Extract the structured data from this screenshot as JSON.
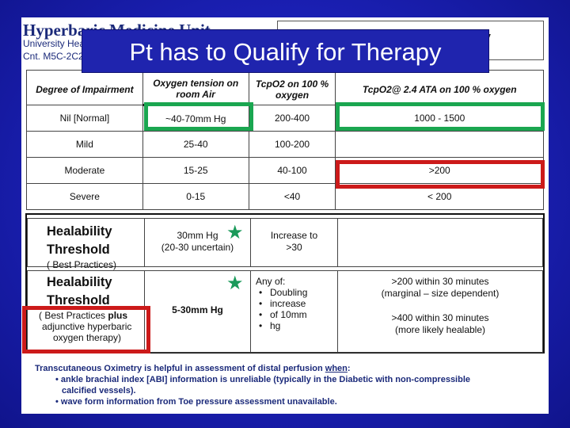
{
  "header": {
    "unit_title": "Hyperbaric Medicine Unit",
    "unit_university": "University Hea",
    "unit_location": "Cnt. M5C-2C2",
    "box_letter": "V"
  },
  "banner": {
    "title": "Pt has to Qualify for Therapy"
  },
  "table": {
    "columns": [
      "Degree of Impairment",
      "Oxygen tension on room Air",
      "TcpO2 on 100 % oxygen",
      "TcpO2@ 2.4 ATA on 100 % oxygen"
    ],
    "rows": [
      [
        "Nil [Normal]",
        "~40-70mm Hg",
        "200-400",
        "1000 - 1500"
      ],
      [
        "Mild",
        "25-40",
        "100-200",
        ""
      ],
      [
        "Moderate",
        "15-25",
        "40-100",
        ">200"
      ],
      [
        "Severe",
        "0-15",
        "<40",
        "< 200"
      ]
    ]
  },
  "threshold1": {
    "title_line1": "Healability",
    "title_line2": "Threshold",
    "subtitle": "( Best Practices)",
    "tension_line1": "30mm Hg",
    "tension_line2": "(20-30 uncertain)",
    "tcpo2_line1": "Increase to",
    "tcpo2_line2": ">30"
  },
  "threshold2": {
    "title_line1": "Healability",
    "title_line2": "Threshold",
    "sub_line1_a": "( Best Practices ",
    "sub_line1_b": "plus",
    "sub_line2": "adjunctive hyperbaric",
    "sub_line3": "oxygen therapy)",
    "tension": "5-30mm Hg",
    "any_of": "Any of:",
    "bullet1": "Doubling",
    "bullet2_l1": "increase",
    "bullet2_l2": "of 10mm",
    "bullet2_l3": "hg",
    "ata_line1": ">200 within 30 minutes",
    "ata_line2": "(marginal – size dependent)",
    "ata_line3": ">400 within 30 minutes",
    "ata_line4": "(more likely healable)"
  },
  "footnote": {
    "lead": "Transcutaneous Oximetry is helpful in assessment of distal perfusion ",
    "when": "when",
    "colon": ":",
    "item1_l1": "• ankle brachial index [ABI]  information is unreliable (typically in the Diabetic with non-compressible",
    "item1_l2": "calcified vessels).",
    "item2": "• wave form information from Toe pressure assessment unavailable."
  },
  "colors": {
    "background": "#1a1fb2",
    "banner": "#1f24ae",
    "highlight_green": "#1aa650",
    "highlight_red": "#cc1a1a",
    "star": "#1a9a5a"
  },
  "icons": [
    "star-icon"
  ]
}
